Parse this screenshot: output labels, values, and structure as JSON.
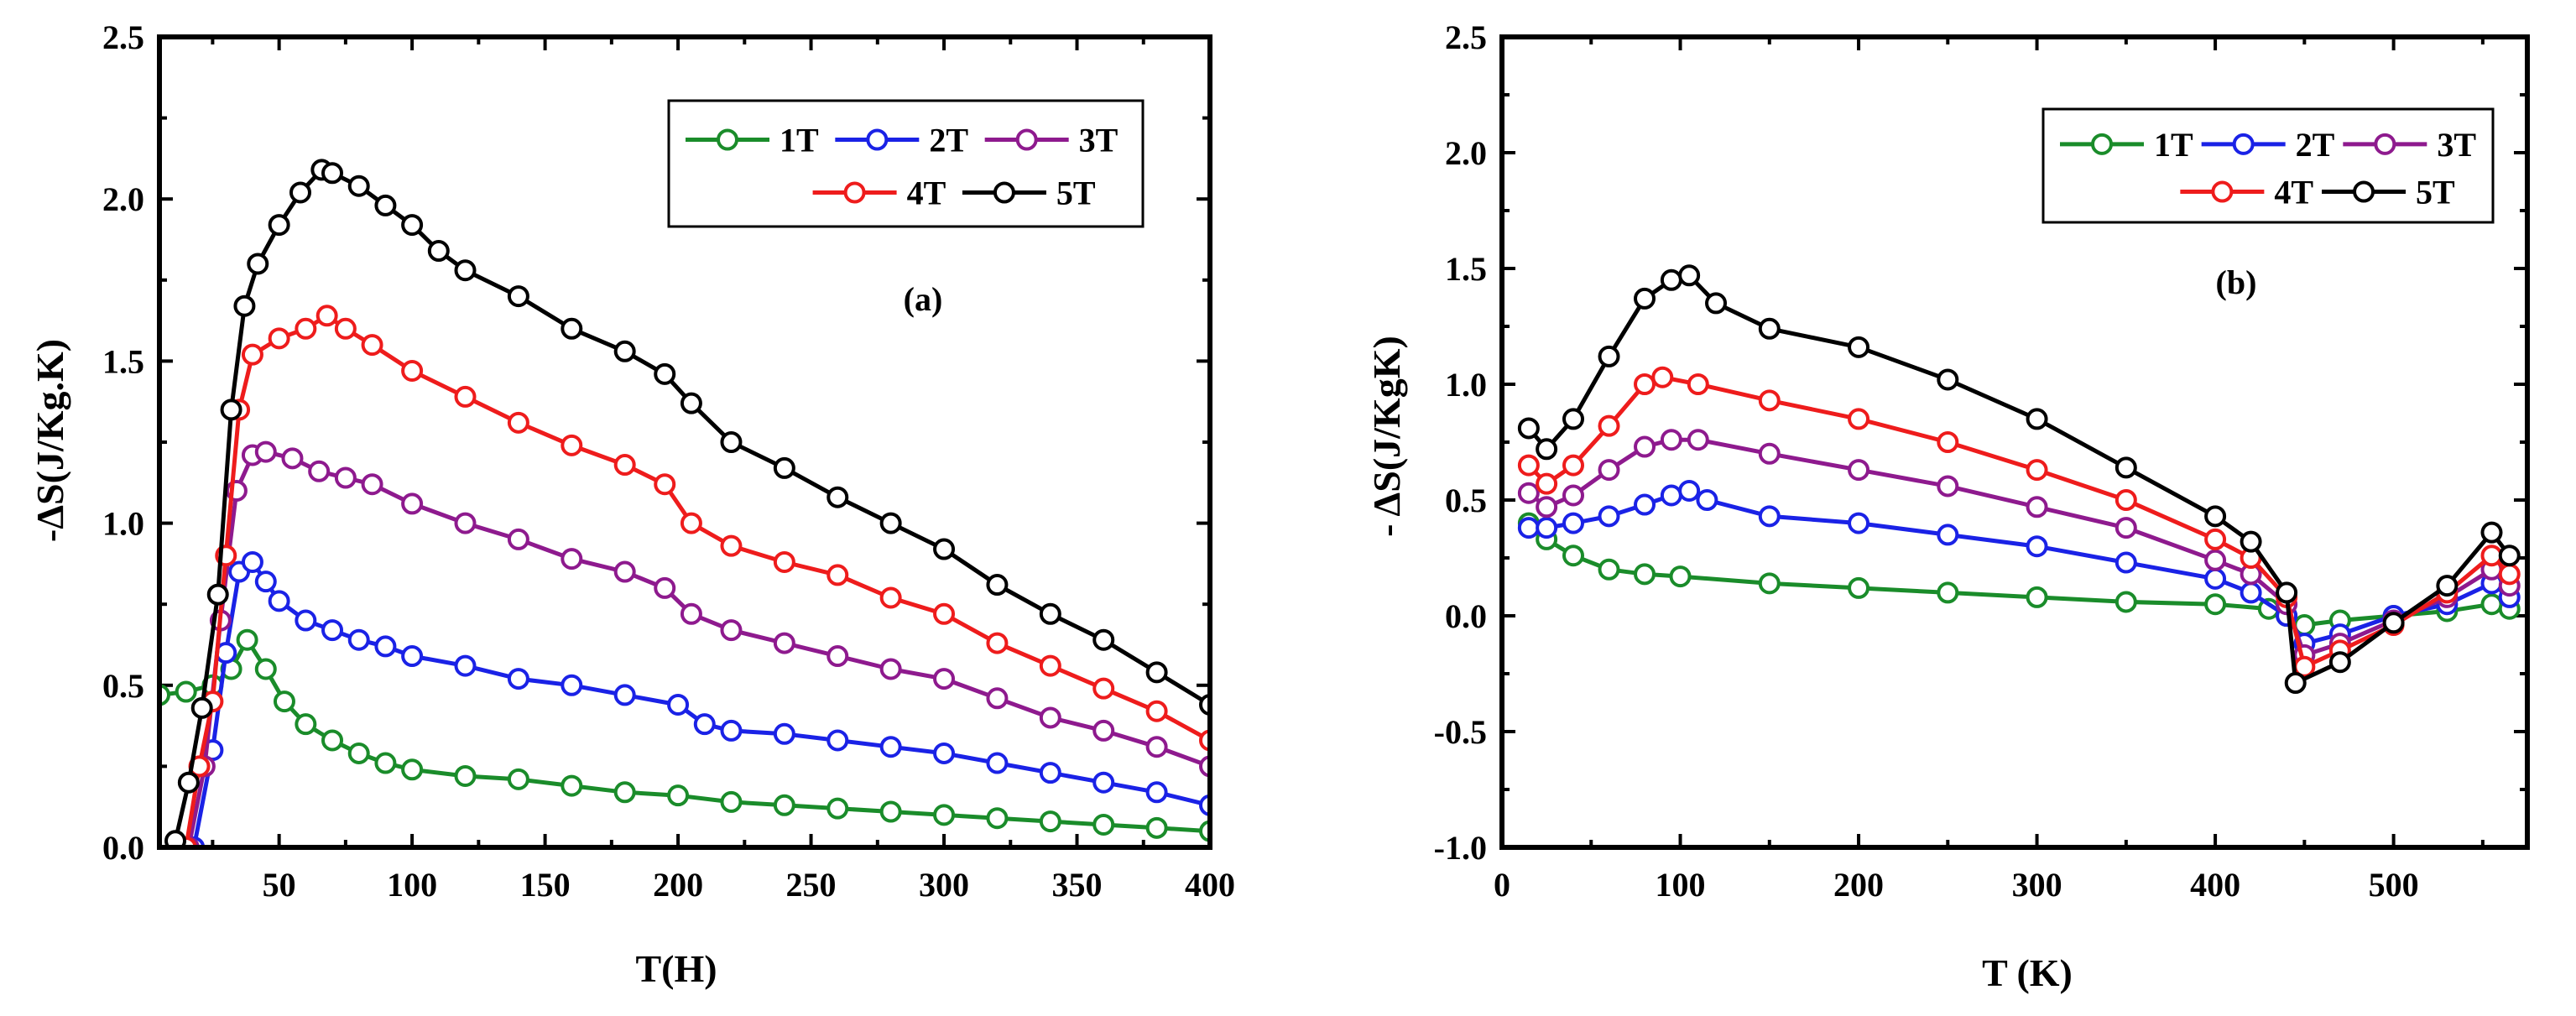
{
  "chart_data": [
    {
      "type": "line",
      "panel": "(a)",
      "xlabel": "T(H)",
      "ylabel": "-ΔS(J/Kg.K)",
      "xlim": [
        5,
        400
      ],
      "ylim": [
        0.0,
        2.5
      ],
      "xticks": [
        50,
        100,
        150,
        200,
        250,
        300,
        350,
        400
      ],
      "yticks": [
        0.0,
        0.5,
        1.0,
        1.5,
        2.0,
        2.5
      ],
      "ytick_labels": [
        "0.0",
        "0.5",
        "1.0",
        "1.5",
        "2.0",
        "2.5"
      ],
      "legend_position": "top-right",
      "series": [
        {
          "name": "1T",
          "color": "#1a8c2a",
          "points": [
            [
              5,
              0.47
            ],
            [
              15,
              0.48
            ],
            [
              25,
              0.5
            ],
            [
              32,
              0.55
            ],
            [
              38,
              0.64
            ],
            [
              45,
              0.55
            ],
            [
              52,
              0.45
            ],
            [
              60,
              0.38
            ],
            [
              70,
              0.33
            ],
            [
              80,
              0.29
            ],
            [
              90,
              0.26
            ],
            [
              100,
              0.24
            ],
            [
              120,
              0.22
            ],
            [
              140,
              0.21
            ],
            [
              160,
              0.19
            ],
            [
              180,
              0.17
            ],
            [
              200,
              0.16
            ],
            [
              220,
              0.14
            ],
            [
              240,
              0.13
            ],
            [
              260,
              0.12
            ],
            [
              280,
              0.11
            ],
            [
              300,
              0.1
            ],
            [
              320,
              0.09
            ],
            [
              340,
              0.08
            ],
            [
              360,
              0.07
            ],
            [
              380,
              0.06
            ],
            [
              400,
              0.05
            ]
          ]
        },
        {
          "name": "2T",
          "color": "#1a22e6",
          "points": [
            [
              18,
              0.0
            ],
            [
              25,
              0.3
            ],
            [
              30,
              0.6
            ],
            [
              35,
              0.85
            ],
            [
              40,
              0.88
            ],
            [
              45,
              0.82
            ],
            [
              50,
              0.76
            ],
            [
              60,
              0.7
            ],
            [
              70,
              0.67
            ],
            [
              80,
              0.64
            ],
            [
              90,
              0.62
            ],
            [
              100,
              0.59
            ],
            [
              120,
              0.56
            ],
            [
              140,
              0.52
            ],
            [
              160,
              0.5
            ],
            [
              180,
              0.47
            ],
            [
              200,
              0.44
            ],
            [
              210,
              0.38
            ],
            [
              220,
              0.36
            ],
            [
              240,
              0.35
            ],
            [
              260,
              0.33
            ],
            [
              280,
              0.31
            ],
            [
              300,
              0.29
            ],
            [
              320,
              0.26
            ],
            [
              340,
              0.23
            ],
            [
              360,
              0.2
            ],
            [
              380,
              0.17
            ],
            [
              400,
              0.13
            ]
          ]
        },
        {
          "name": "3T",
          "color": "#8e1a8e",
          "points": [
            [
              16,
              0.0
            ],
            [
              22,
              0.25
            ],
            [
              28,
              0.7
            ],
            [
              34,
              1.1
            ],
            [
              40,
              1.21
            ],
            [
              45,
              1.22
            ],
            [
              55,
              1.2
            ],
            [
              65,
              1.16
            ],
            [
              75,
              1.14
            ],
            [
              85,
              1.12
            ],
            [
              100,
              1.06
            ],
            [
              120,
              1.0
            ],
            [
              140,
              0.95
            ],
            [
              160,
              0.89
            ],
            [
              180,
              0.85
            ],
            [
              195,
              0.8
            ],
            [
              205,
              0.72
            ],
            [
              220,
              0.67
            ],
            [
              240,
              0.63
            ],
            [
              260,
              0.59
            ],
            [
              280,
              0.55
            ],
            [
              300,
              0.52
            ],
            [
              320,
              0.46
            ],
            [
              340,
              0.4
            ],
            [
              360,
              0.36
            ],
            [
              380,
              0.31
            ],
            [
              400,
              0.25
            ]
          ]
        },
        {
          "name": "4T",
          "color": "#ee1c1c",
          "points": [
            [
              15,
              0.0
            ],
            [
              20,
              0.25
            ],
            [
              25,
              0.45
            ],
            [
              30,
              0.9
            ],
            [
              35,
              1.35
            ],
            [
              40,
              1.52
            ],
            [
              50,
              1.57
            ],
            [
              60,
              1.6
            ],
            [
              68,
              1.64
            ],
            [
              75,
              1.6
            ],
            [
              85,
              1.55
            ],
            [
              100,
              1.47
            ],
            [
              120,
              1.39
            ],
            [
              140,
              1.31
            ],
            [
              160,
              1.24
            ],
            [
              180,
              1.18
            ],
            [
              195,
              1.12
            ],
            [
              205,
              1.0
            ],
            [
              220,
              0.93
            ],
            [
              240,
              0.88
            ],
            [
              260,
              0.84
            ],
            [
              280,
              0.77
            ],
            [
              300,
              0.72
            ],
            [
              320,
              0.63
            ],
            [
              340,
              0.56
            ],
            [
              360,
              0.49
            ],
            [
              380,
              0.42
            ],
            [
              400,
              0.33
            ]
          ]
        },
        {
          "name": "5T",
          "color": "#000000",
          "points": [
            [
              11,
              0.02
            ],
            [
              16,
              0.2
            ],
            [
              21,
              0.43
            ],
            [
              27,
              0.78
            ],
            [
              32,
              1.35
            ],
            [
              37,
              1.67
            ],
            [
              42,
              1.8
            ],
            [
              50,
              1.92
            ],
            [
              58,
              2.02
            ],
            [
              66,
              2.09
            ],
            [
              70,
              2.08
            ],
            [
              80,
              2.04
            ],
            [
              90,
              1.98
            ],
            [
              100,
              1.92
            ],
            [
              110,
              1.84
            ],
            [
              120,
              1.78
            ],
            [
              140,
              1.7
            ],
            [
              160,
              1.6
            ],
            [
              180,
              1.53
            ],
            [
              195,
              1.46
            ],
            [
              205,
              1.37
            ],
            [
              220,
              1.25
            ],
            [
              240,
              1.17
            ],
            [
              260,
              1.08
            ],
            [
              280,
              1.0
            ],
            [
              300,
              0.92
            ],
            [
              320,
              0.81
            ],
            [
              340,
              0.72
            ],
            [
              360,
              0.64
            ],
            [
              380,
              0.54
            ],
            [
              400,
              0.44
            ]
          ]
        }
      ]
    },
    {
      "type": "line",
      "panel": "(b)",
      "xlabel": "T (K)",
      "ylabel": "- ΔS(J/KgK)",
      "xlim": [
        0,
        575
      ],
      "ylim": [
        -1.0,
        2.5
      ],
      "xticks": [
        0,
        100,
        200,
        300,
        400,
        500
      ],
      "yticks": [
        -1.0,
        -0.5,
        0.0,
        0.5,
        1.0,
        1.5,
        2.0,
        2.5
      ],
      "ytick_labels": [
        "-1.0",
        "-0.5",
        "0.0",
        "0.5",
        "1.0",
        "1.5",
        "2.0",
        "2.5"
      ],
      "legend_position": "top-right",
      "series": [
        {
          "name": "1T",
          "color": "#1a8c2a",
          "points": [
            [
              15,
              0.4
            ],
            [
              25,
              0.33
            ],
            [
              40,
              0.26
            ],
            [
              60,
              0.2
            ],
            [
              80,
              0.18
            ],
            [
              100,
              0.17
            ],
            [
              150,
              0.14
            ],
            [
              200,
              0.12
            ],
            [
              250,
              0.1
            ],
            [
              300,
              0.08
            ],
            [
              350,
              0.06
            ],
            [
              400,
              0.05
            ],
            [
              430,
              0.03
            ],
            [
              440,
              0.0
            ],
            [
              450,
              -0.04
            ],
            [
              470,
              -0.02
            ],
            [
              500,
              0.0
            ],
            [
              530,
              0.02
            ],
            [
              555,
              0.05
            ],
            [
              565,
              0.03
            ]
          ]
        },
        {
          "name": "2T",
          "color": "#1a22e6",
          "points": [
            [
              15,
              0.38
            ],
            [
              25,
              0.38
            ],
            [
              40,
              0.4
            ],
            [
              60,
              0.43
            ],
            [
              80,
              0.48
            ],
            [
              95,
              0.52
            ],
            [
              105,
              0.54
            ],
            [
              115,
              0.5
            ],
            [
              150,
              0.43
            ],
            [
              200,
              0.4
            ],
            [
              250,
              0.35
            ],
            [
              300,
              0.3
            ],
            [
              350,
              0.23
            ],
            [
              400,
              0.16
            ],
            [
              420,
              0.1
            ],
            [
              440,
              0.0
            ],
            [
              450,
              -0.12
            ],
            [
              470,
              -0.08
            ],
            [
              500,
              0.0
            ],
            [
              530,
              0.05
            ],
            [
              555,
              0.14
            ],
            [
              565,
              0.08
            ]
          ]
        },
        {
          "name": "3T",
          "color": "#8e1a8e",
          "points": [
            [
              15,
              0.53
            ],
            [
              25,
              0.47
            ],
            [
              40,
              0.52
            ],
            [
              60,
              0.63
            ],
            [
              80,
              0.73
            ],
            [
              95,
              0.76
            ],
            [
              110,
              0.76
            ],
            [
              150,
              0.7
            ],
            [
              200,
              0.63
            ],
            [
              250,
              0.56
            ],
            [
              300,
              0.47
            ],
            [
              350,
              0.38
            ],
            [
              400,
              0.24
            ],
            [
              420,
              0.18
            ],
            [
              440,
              0.05
            ],
            [
              450,
              -0.17
            ],
            [
              470,
              -0.12
            ],
            [
              500,
              -0.02
            ],
            [
              530,
              0.08
            ],
            [
              555,
              0.2
            ],
            [
              565,
              0.13
            ]
          ]
        },
        {
          "name": "4T",
          "color": "#ee1c1c",
          "points": [
            [
              15,
              0.65
            ],
            [
              25,
              0.57
            ],
            [
              40,
              0.65
            ],
            [
              60,
              0.82
            ],
            [
              80,
              1.0
            ],
            [
              90,
              1.03
            ],
            [
              110,
              1.0
            ],
            [
              150,
              0.93
            ],
            [
              200,
              0.85
            ],
            [
              250,
              0.75
            ],
            [
              300,
              0.63
            ],
            [
              350,
              0.5
            ],
            [
              400,
              0.33
            ],
            [
              420,
              0.25
            ],
            [
              440,
              0.08
            ],
            [
              450,
              -0.22
            ],
            [
              470,
              -0.15
            ],
            [
              500,
              -0.04
            ],
            [
              530,
              0.1
            ],
            [
              555,
              0.26
            ],
            [
              565,
              0.18
            ]
          ]
        },
        {
          "name": "5T",
          "color": "#000000",
          "points": [
            [
              15,
              0.81
            ],
            [
              25,
              0.72
            ],
            [
              40,
              0.85
            ],
            [
              60,
              1.12
            ],
            [
              80,
              1.37
            ],
            [
              95,
              1.45
            ],
            [
              105,
              1.47
            ],
            [
              120,
              1.35
            ],
            [
              150,
              1.24
            ],
            [
              200,
              1.16
            ],
            [
              250,
              1.02
            ],
            [
              300,
              0.85
            ],
            [
              350,
              0.64
            ],
            [
              400,
              0.43
            ],
            [
              420,
              0.32
            ],
            [
              440,
              0.1
            ],
            [
              445,
              -0.29
            ],
            [
              470,
              -0.2
            ],
            [
              500,
              -0.03
            ],
            [
              530,
              0.13
            ],
            [
              555,
              0.36
            ],
            [
              565,
              0.26
            ]
          ]
        }
      ]
    }
  ]
}
